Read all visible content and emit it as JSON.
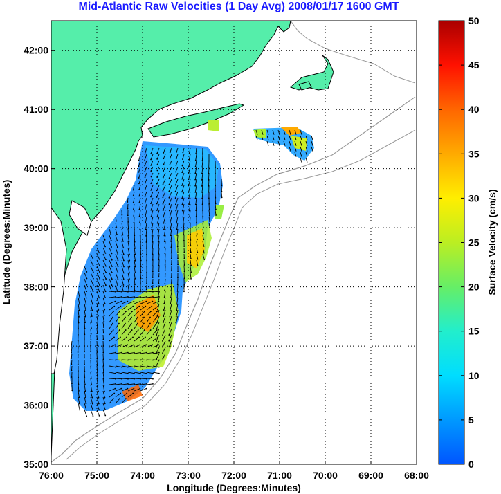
{
  "title": "Mid-Atlantic Raw Velocities (1 Day Avg) 2008/01/17 1600 GMT",
  "map": {
    "xlabel": "Longitude (Degrees:Minutes)",
    "ylabel": "Latitude (Degrees:Minutes)",
    "x_ticks": [
      "76:00",
      "75:00",
      "74:00",
      "73:00",
      "72:00",
      "71:00",
      "70:00",
      "69:00",
      "68:00"
    ],
    "y_ticks": [
      "35:00",
      "36:00",
      "37:00",
      "38:00",
      "39:00",
      "40:00",
      "41:00",
      "42:00"
    ],
    "lon_range": [
      -76,
      -68
    ],
    "lat_range": [
      35,
      42.5
    ],
    "grid": "dotted",
    "colors": {
      "land": "#55eeaa",
      "coastline": "#000000",
      "bathymetry": "#999999",
      "background": "#ffffff"
    }
  },
  "colorbar": {
    "label": "Surface Velocity (cm/s)",
    "ticks": [
      "0",
      "5",
      "10",
      "15",
      "20",
      "25",
      "30",
      "35",
      "40",
      "45",
      "50"
    ],
    "range": [
      0,
      50
    ],
    "colormap": [
      "#0055ff",
      "#0099ff",
      "#00ddff",
      "#22eecc",
      "#66ee66",
      "#bbee22",
      "#ffee00",
      "#ffaa00",
      "#ff6600",
      "#ff1100",
      "#aa0000"
    ]
  }
}
